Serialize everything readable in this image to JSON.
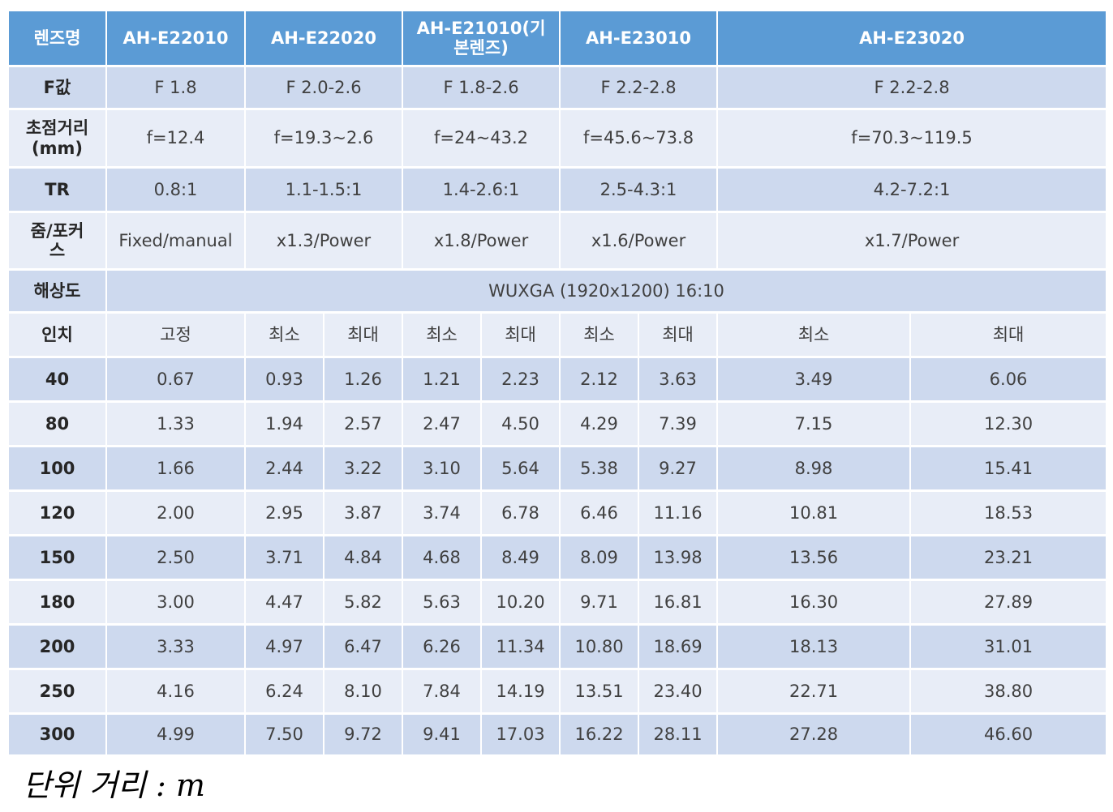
{
  "header": {
    "label": "렌즈명",
    "models": [
      "AH-E22010",
      "AH-E22020",
      "AH-E21010(기본렌즈)",
      "AH-E23010",
      "AH-E23020"
    ]
  },
  "specs": {
    "f_value": {
      "label": "F값",
      "values": [
        "F 1.8",
        "F 2.0-2.6",
        "F 1.8-2.6",
        "F 2.2-2.8",
        "F 2.2-2.8"
      ]
    },
    "focal_length": {
      "label": "초점거리\n(mm)",
      "values": [
        "f=12.4",
        "f=19.3~2.6",
        "f=24~43.2",
        "f=45.6~73.8",
        "f=70.3~119.5"
      ]
    },
    "tr": {
      "label": "TR",
      "values": [
        "0.8:1",
        "1.1-1.5:1",
        "1.4-2.6:1",
        "2.5-4.3:1",
        "4.2-7.2:1"
      ]
    },
    "zoom_focus": {
      "label": "줌/포커스",
      "values": [
        "Fixed/manual",
        "x1.3/Power",
        "x1.8/Power",
        "x1.6/Power",
        "x1.7/Power"
      ]
    },
    "resolution": {
      "label": "해상도",
      "value": "WUXGA (1920x1200) 16:10"
    }
  },
  "distance_header": {
    "label": "인치",
    "cols": [
      "고정",
      "최소",
      "최대",
      "최소",
      "최대",
      "최소",
      "최대",
      "최소",
      "최대"
    ]
  },
  "rows": [
    {
      "inch": "40",
      "values": [
        "0.67",
        "0.93",
        "1.26",
        "1.21",
        "2.23",
        "2.12",
        "3.63",
        "3.49",
        "6.06"
      ]
    },
    {
      "inch": "80",
      "values": [
        "1.33",
        "1.94",
        "2.57",
        "2.47",
        "4.50",
        "4.29",
        "7.39",
        "7.15",
        "12.30"
      ]
    },
    {
      "inch": "100",
      "values": [
        "1.66",
        "2.44",
        "3.22",
        "3.10",
        "5.64",
        "5.38",
        "9.27",
        "8.98",
        "15.41"
      ]
    },
    {
      "inch": "120",
      "values": [
        "2.00",
        "2.95",
        "3.87",
        "3.74",
        "6.78",
        "6.46",
        "11.16",
        "10.81",
        "18.53"
      ]
    },
    {
      "inch": "150",
      "values": [
        "2.50",
        "3.71",
        "4.84",
        "4.68",
        "8.49",
        "8.09",
        "13.98",
        "13.56",
        "23.21"
      ]
    },
    {
      "inch": "180",
      "values": [
        "3.00",
        "4.47",
        "5.82",
        "5.63",
        "10.20",
        "9.71",
        "16.81",
        "16.30",
        "27.89"
      ]
    },
    {
      "inch": "200",
      "values": [
        "3.33",
        "4.97",
        "6.47",
        "6.26",
        "11.34",
        "10.80",
        "18.69",
        "18.13",
        "31.01"
      ]
    },
    {
      "inch": "250",
      "values": [
        "4.16",
        "6.24",
        "8.10",
        "7.84",
        "14.19",
        "13.51",
        "23.40",
        "22.71",
        "38.80"
      ]
    },
    {
      "inch": "300",
      "values": [
        "4.99",
        "7.50",
        "9.72",
        "9.41",
        "17.03",
        "16.22",
        "28.11",
        "27.28",
        "46.60"
      ]
    }
  ],
  "unit_note": "단위 거리 : m",
  "colors": {
    "header_blue": "#5b9bd5",
    "band_dark": "#cdd9ee",
    "band_light": "#e8edf7"
  }
}
